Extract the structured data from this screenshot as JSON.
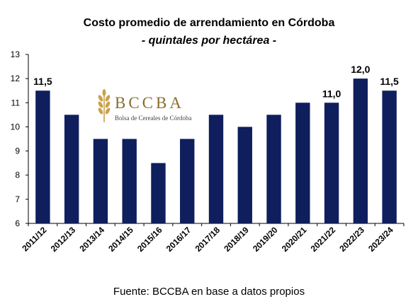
{
  "chart_data": {
    "type": "bar",
    "title": "Costo promedio de arrendamiento en Córdoba",
    "subtitle": "- quintales por hectárea -",
    "xlabel": "",
    "ylabel": "",
    "categories": [
      "2011/12",
      "2012/13",
      "2013/14",
      "2014/15",
      "2015/16",
      "2016/17",
      "2017/18",
      "2018/19",
      "2019/20",
      "2020/21",
      "2021/22",
      "2022/23",
      "2023/24"
    ],
    "values": [
      11.5,
      10.5,
      9.5,
      9.5,
      8.5,
      9.5,
      10.5,
      10.0,
      10.5,
      11.0,
      11.0,
      12.0,
      11.5
    ],
    "data_labels": [
      "11,5",
      "",
      "",
      "",
      "",
      "",
      "",
      "",
      "",
      "",
      "11,0",
      "12,0",
      "11,5"
    ],
    "ylim": [
      6,
      13
    ],
    "yticks": [
      6,
      7,
      8,
      9,
      10,
      11,
      12,
      13
    ],
    "grid": false,
    "legend": "none",
    "bar_color": "#0f1e5c"
  },
  "logo": {
    "wordmark": "BCCBA",
    "tagline": "Bolsa de Cereales de Córdoba",
    "color": "#c9a24a"
  },
  "source": "Fuente: BCCBA en base a datos propios"
}
